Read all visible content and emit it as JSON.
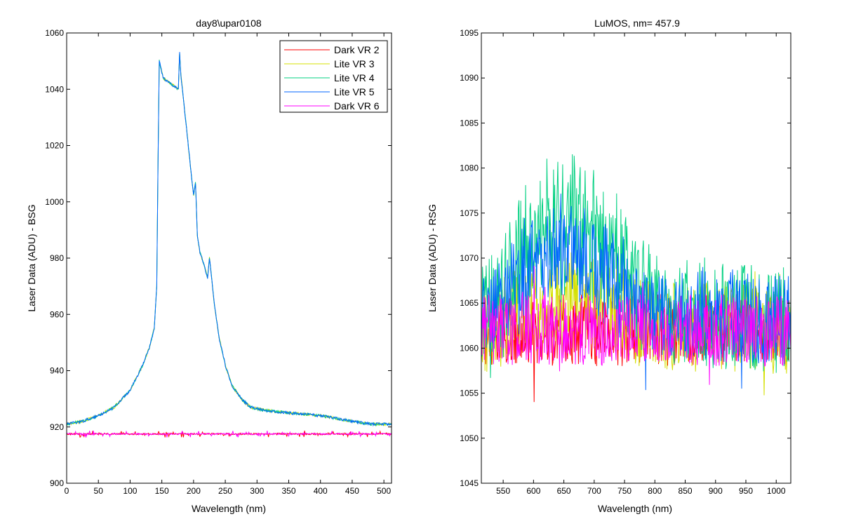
{
  "chart_data": [
    {
      "type": "line",
      "title": "day8\\upar0108",
      "xlabel": "Wavelength (nm)",
      "ylabel": "Laser Data (ADU) - BSG",
      "xlim": [
        0,
        512
      ],
      "ylim": [
        900,
        1060
      ],
      "xticks": [
        0,
        50,
        100,
        150,
        200,
        250,
        300,
        350,
        400,
        450,
        500
      ],
      "yticks": [
        900,
        920,
        940,
        960,
        980,
        1000,
        1020,
        1040,
        1060
      ],
      "legend": "top-right",
      "grid": false,
      "series": [
        {
          "name": "Dark VR 2",
          "color": "#ff0000",
          "kind": "flat",
          "level": 917.5
        },
        {
          "name": "Lite VR 3",
          "color": "#d4e000",
          "kind": "peak"
        },
        {
          "name": "Lite VR 4",
          "color": "#00d080",
          "kind": "peak"
        },
        {
          "name": "Lite VR 5",
          "color": "#0066ff",
          "kind": "peak"
        },
        {
          "name": "Dark VR 6",
          "color": "#ff00ff",
          "kind": "flat",
          "level": 917.5
        }
      ],
      "profile": {
        "x": [
          0,
          25,
          50,
          75,
          100,
          120,
          130,
          138,
          142,
          144,
          146,
          150,
          152,
          176,
          178,
          180,
          182,
          200,
          203,
          206,
          210,
          216,
          222,
          225,
          228,
          232,
          240,
          250,
          260,
          275,
          290,
          310,
          350,
          400,
          450,
          480,
          512
        ],
        "y": [
          921,
          922,
          924,
          927,
          933,
          942,
          948,
          955,
          970,
          1014,
          1050,
          1046,
          1044,
          1040,
          1053,
          1045,
          1041,
          1002,
          1007,
          988,
          982,
          978,
          973,
          980,
          974,
          965,
          952,
          942,
          935,
          930,
          927,
          926,
          925,
          924,
          922,
          921,
          921
        ]
      }
    },
    {
      "type": "line",
      "title": "LuMOS, nm= 457.9",
      "xlabel": "Wavelength (nm)",
      "ylabel": "Laser Data (ADU) - RSG",
      "xlim": [
        514,
        1024
      ],
      "ylim": [
        1045,
        1095
      ],
      "xticks": [
        550,
        600,
        650,
        700,
        750,
        800,
        850,
        900,
        950,
        1000
      ],
      "yticks": [
        1045,
        1050,
        1055,
        1060,
        1065,
        1070,
        1075,
        1080,
        1085,
        1090,
        1095
      ],
      "grid": false,
      "series": [
        {
          "name": "Dark VR 2",
          "color": "#ff0000",
          "base": 1062,
          "amp": 4
        },
        {
          "name": "Lite VR 3",
          "color": "#d4e000",
          "base": 1062,
          "amp": 5
        },
        {
          "name": "Lite VR 4",
          "color": "#00d080",
          "base": 1063,
          "amp": 6
        },
        {
          "name": "Lite VR 5",
          "color": "#0066ff",
          "base": 1063,
          "amp": 5
        },
        {
          "name": "Dark VR 6",
          "color": "#ff00ff",
          "base": 1062,
          "amp": 4
        }
      ],
      "hump": {
        "x": [
          514,
          560,
          600,
          660,
          700,
          760,
          800,
          1024
        ],
        "y": [
          0,
          6,
          12,
          16,
          12,
          6,
          2,
          0
        ]
      }
    }
  ]
}
